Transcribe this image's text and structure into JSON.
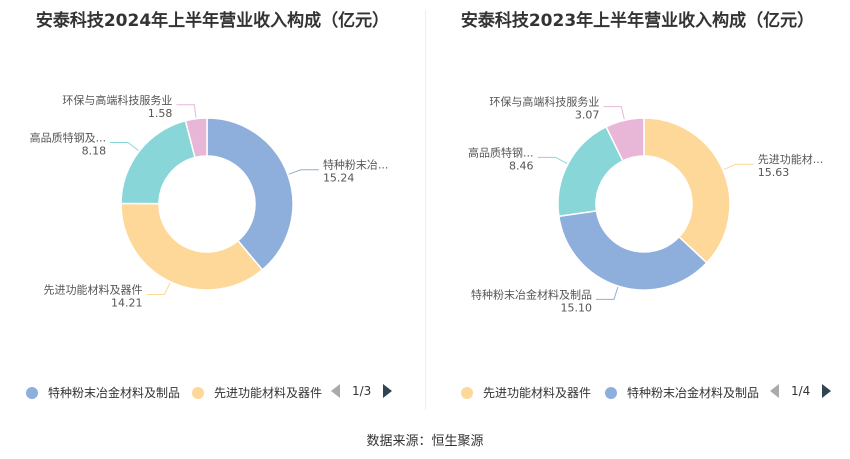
{
  "charts": [
    {
      "title": "安泰科技2024年上半年营业收入构成（亿元）",
      "legend": {
        "items": [
          {
            "label": "特种粉末冶金材料及制品",
            "color": "#8eaedc"
          },
          {
            "label": "先进功能材料及器件",
            "color": "#fdd899"
          }
        ],
        "page": "1/3"
      },
      "chart_data": {
        "type": "pie",
        "slices": [
          {
            "name": "特种粉末冶金材料及制品",
            "label": "特种粉末冶...",
            "value": 15.24,
            "value_label": "15.24",
            "color": "#8eaedc"
          },
          {
            "name": "先进功能材料及器件",
            "label": "先进功能材料及器件",
            "value": 14.21,
            "value_label": "14.21",
            "color": "#fdd899"
          },
          {
            "name": "高品质特钢及...",
            "label": "高品质特钢及...",
            "value": 8.18,
            "value_label": "8.18",
            "color": "#89d6d9"
          },
          {
            "name": "环保与高端科技服务业",
            "label": "环保与高端科技服务业",
            "value": 1.58,
            "value_label": "1.58",
            "color": "#e8b7d8"
          }
        ]
      }
    },
    {
      "title": "安泰科技2023年上半年营业收入构成（亿元）",
      "legend": {
        "items": [
          {
            "label": "先进功能材料及器件",
            "color": "#fdd899"
          },
          {
            "label": "特种粉末冶金材料及制品",
            "color": "#8eaedc"
          }
        ],
        "page": "1/4"
      },
      "chart_data": {
        "type": "pie",
        "slices": [
          {
            "name": "先进功能材...",
            "label": "先进功能材...",
            "value": 15.63,
            "value_label": "15.63",
            "color": "#fdd899"
          },
          {
            "name": "特种粉末冶金材料及制品",
            "label": "特种粉末冶金材料及制品",
            "value": 15.1,
            "value_label": "15.10",
            "color": "#8eaedc"
          },
          {
            "name": "高品质特钢...",
            "label": "高品质特钢...",
            "value": 8.46,
            "value_label": "8.46",
            "color": "#89d6d9"
          },
          {
            "name": "环保与高端科技服务业",
            "label": "环保与高端科技服务业",
            "value": 3.07,
            "value_label": "3.07",
            "color": "#e8b7d8"
          }
        ]
      }
    }
  ],
  "source": "数据来源：恒生聚源"
}
